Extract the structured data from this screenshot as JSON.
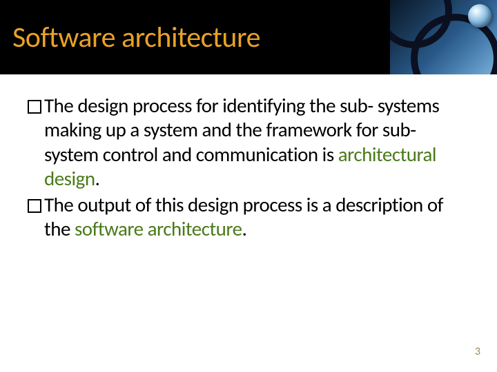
{
  "title": "Software architecture",
  "title_color": "#e8a227",
  "title_bg": "#000000",
  "bullets": [
    {
      "pre": "The design process for identifying the sub-\nsystems making up a system and the framework for sub-system control and communication is ",
      "emph": "architectural design",
      "post": "."
    },
    {
      "pre": "The output of this design process is a description of the ",
      "emph": "software architecture",
      "post": "."
    }
  ],
  "emph_color": "#4a7a1a",
  "body_color": "#000000",
  "body_fontsize": 29,
  "page_number": "3",
  "page_number_color": "#9a8860"
}
